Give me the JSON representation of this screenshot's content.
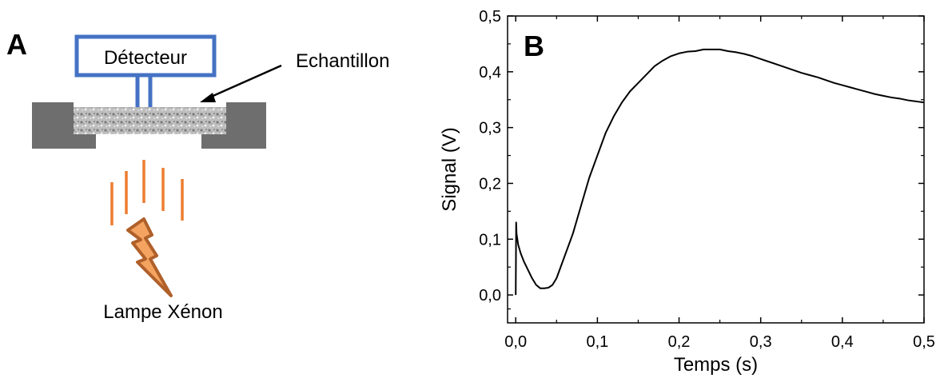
{
  "panel_a": {
    "label": "A",
    "detector_label": "Détecteur",
    "sample_label": "Echantillon",
    "lamp_label": "Lampe Xénon",
    "colors": {
      "detector": "#4472C4",
      "holder": "#6E6E6E",
      "flash": "#ED7D31",
      "bolt_fill": "#F4A460",
      "bolt_stroke": "#B0602A"
    }
  },
  "chart_data": {
    "type": "line",
    "panel_label": "B",
    "title": "",
    "xlabel": "Temps (s)",
    "ylabel": "Signal (V)",
    "xlim": [
      -0.01,
      0.5
    ],
    "ylim": [
      -0.05,
      0.5
    ],
    "xticks": [
      0.0,
      0.1,
      0.2,
      0.3,
      0.4,
      0.5
    ],
    "xtick_labels": [
      "0,0",
      "0,1",
      "0,2",
      "0,3",
      "0,4",
      "0,5"
    ],
    "yticks": [
      0.0,
      0.1,
      0.2,
      0.3,
      0.4,
      0.5
    ],
    "ytick_labels": [
      "0,0",
      "0,1",
      "0,2",
      "0,3",
      "0,4",
      "0,5"
    ],
    "grid": false,
    "line_color": "#000000",
    "series": [
      {
        "x": [
          0.0,
          0.0005,
          0.001,
          0.003,
          0.006,
          0.01,
          0.015,
          0.02,
          0.025,
          0.03,
          0.035,
          0.04,
          0.045,
          0.05,
          0.06,
          0.07,
          0.08,
          0.09,
          0.1,
          0.11,
          0.12,
          0.13,
          0.14,
          0.15,
          0.16,
          0.17,
          0.18,
          0.19,
          0.2,
          0.21,
          0.22,
          0.23,
          0.24,
          0.25,
          0.26,
          0.27,
          0.28,
          0.29,
          0.3,
          0.31,
          0.32,
          0.33,
          0.34,
          0.35,
          0.36,
          0.37,
          0.38,
          0.39,
          0.4,
          0.41,
          0.42,
          0.43,
          0.44,
          0.45,
          0.46,
          0.47,
          0.48,
          0.49,
          0.5
        ],
        "y": [
          0.0,
          0.13,
          0.11,
          0.09,
          0.075,
          0.06,
          0.045,
          0.03,
          0.018,
          0.012,
          0.012,
          0.013,
          0.018,
          0.03,
          0.07,
          0.11,
          0.16,
          0.21,
          0.25,
          0.29,
          0.32,
          0.345,
          0.365,
          0.38,
          0.395,
          0.41,
          0.42,
          0.428,
          0.433,
          0.436,
          0.437,
          0.44,
          0.44,
          0.44,
          0.437,
          0.435,
          0.432,
          0.428,
          0.423,
          0.418,
          0.413,
          0.408,
          0.403,
          0.398,
          0.394,
          0.39,
          0.385,
          0.38,
          0.376,
          0.372,
          0.368,
          0.364,
          0.36,
          0.357,
          0.354,
          0.352,
          0.349,
          0.347,
          0.345
        ]
      }
    ]
  }
}
